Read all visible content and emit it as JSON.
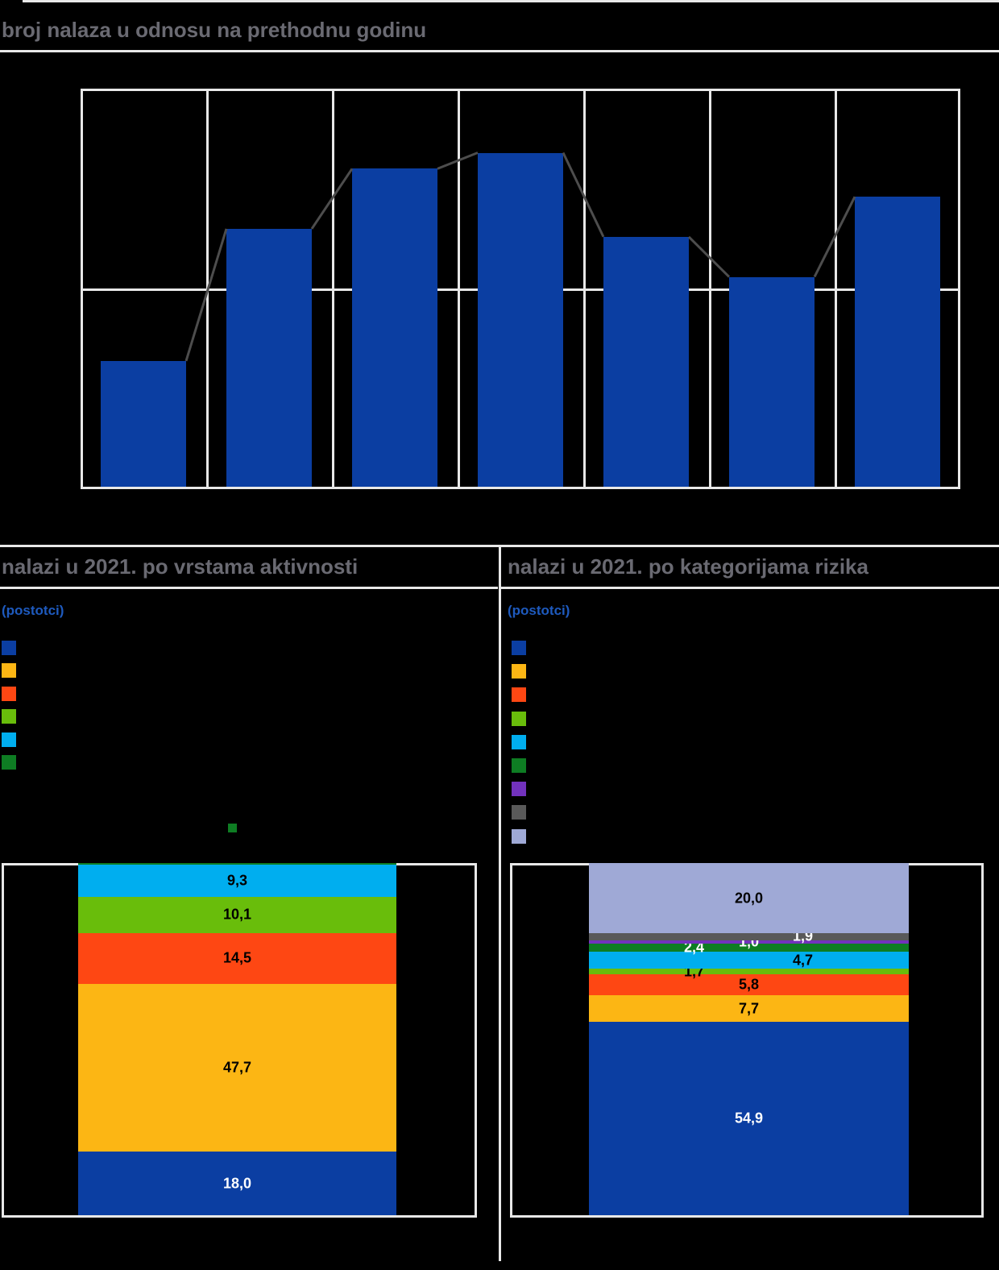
{
  "top_section": {
    "title": "broj nalaza u odnosu na prethodnu godinu"
  },
  "left_section": {
    "title": "nalazi u 2021. po vrstama aktivnosti",
    "subtitle": "(postotci)"
  },
  "right_section": {
    "title": "nalazi u 2021. po kategorijama rizika",
    "subtitle": "(postotci)"
  },
  "colors": {
    "background": "#000000",
    "grid": "#E8E8E8",
    "title_gray": "#6A6A72",
    "subtitle_blue": "#1E5ABE",
    "bar_blue": "#0B3EA2",
    "line_overlay_gray": "#4D4D4D"
  },
  "chart_data": [
    {
      "type": "bar",
      "title": "broj nalaza u odnosu na prethodnu godinu",
      "categories": [
        "",
        "",
        "",
        "",
        "",
        "",
        ""
      ],
      "values": [
        32,
        65,
        80,
        84,
        63,
        53,
        73
      ],
      "value_note": "axis tick labels are not visible in the image; values estimated as percent of plot height, one mid horizontal gridline at 50%",
      "bar_color": "#0B3EA2",
      "line_overlay": {
        "present": true,
        "color": "#4D4D4D",
        "description": "gray line segments connecting top corners of adjacent bars across the gaps"
      },
      "gridlines": {
        "vertical_column_dividers": 8,
        "horizontal_mid": true
      },
      "xlabel": "",
      "ylabel": "",
      "axis_labels_visible": false
    },
    {
      "type": "stacked-bar",
      "title": "nalazi u 2021. po vrstama aktivnosti",
      "subtitle": "(postotci)",
      "total": 100.0,
      "segments_bottom_to_top": [
        {
          "value": 18.0,
          "label": "18,0",
          "color": "#0B3EA2",
          "label_color": "#FFFFFF",
          "label_dx": 0
        },
        {
          "value": 47.7,
          "label": "47,7",
          "color": "#FCB614",
          "label_color": "#000000",
          "label_dx": 0
        },
        {
          "value": 14.5,
          "label": "14,5",
          "color": "#FE4713",
          "label_color": "#000000",
          "label_dx": 0
        },
        {
          "value": 10.1,
          "label": "10,1",
          "color": "#69BD0B",
          "label_color": "#000000",
          "label_dx": 0
        },
        {
          "value": 9.3,
          "label": "9,3",
          "color": "#00AEEF",
          "label_color": "#000000",
          "label_dx": 0
        },
        {
          "value": 0.4,
          "label": "",
          "color": "#0E7D23",
          "label_color": "#000000",
          "label_dx": 0,
          "note": "tiny top segment; small green callout marker drawn above the bar, numeric label not visible"
        }
      ],
      "legend_swatches": [
        "#0B3EA2",
        "#FCB614",
        "#FE4713",
        "#69BD0B",
        "#00AEEF",
        "#0E7D23"
      ],
      "legend_labels_visible": false
    },
    {
      "type": "stacked-bar",
      "title": "nalazi u 2021. po kategorijama rizika",
      "subtitle": "(postotci)",
      "total": 100.1,
      "segments_bottom_to_top": [
        {
          "value": 54.9,
          "label": "54,9",
          "color": "#0B3EA2",
          "label_color": "#FFFFFF",
          "label_dx": 0
        },
        {
          "value": 7.7,
          "label": "7,7",
          "color": "#FCB614",
          "label_color": "#000000",
          "label_dx": 0
        },
        {
          "value": 5.8,
          "label": "5,8",
          "color": "#FE4713",
          "label_color": "#000000",
          "label_dx": 0
        },
        {
          "value": 1.7,
          "label": "1,7",
          "color": "#69BD0B",
          "label_color": "#000000",
          "label_dx": -68
        },
        {
          "value": 4.7,
          "label": "4,7",
          "color": "#00AEEF",
          "label_color": "#000000",
          "label_dx": 67
        },
        {
          "value": 2.4,
          "label": "2,4",
          "color": "#0E7D23",
          "label_color": "#FFFFFF",
          "label_dx": -68
        },
        {
          "value": 1.0,
          "label": "1,0",
          "color": "#7232BD",
          "label_color": "#FFFFFF",
          "label_dx": 0
        },
        {
          "value": 1.9,
          "label": "1,9",
          "color": "#595959",
          "label_color": "#FFFFFF",
          "label_dx": 67
        },
        {
          "value": 20.0,
          "label": "20,0",
          "color": "#9FA9D6",
          "label_color": "#000000",
          "label_dx": 0
        }
      ],
      "legend_swatches": [
        "#0B3EA2",
        "#FCB614",
        "#FE4713",
        "#69BD0B",
        "#00AEEF",
        "#0E7D23",
        "#7232BD",
        "#595959",
        "#9FA9D6"
      ],
      "legend_labels_visible": false
    }
  ]
}
